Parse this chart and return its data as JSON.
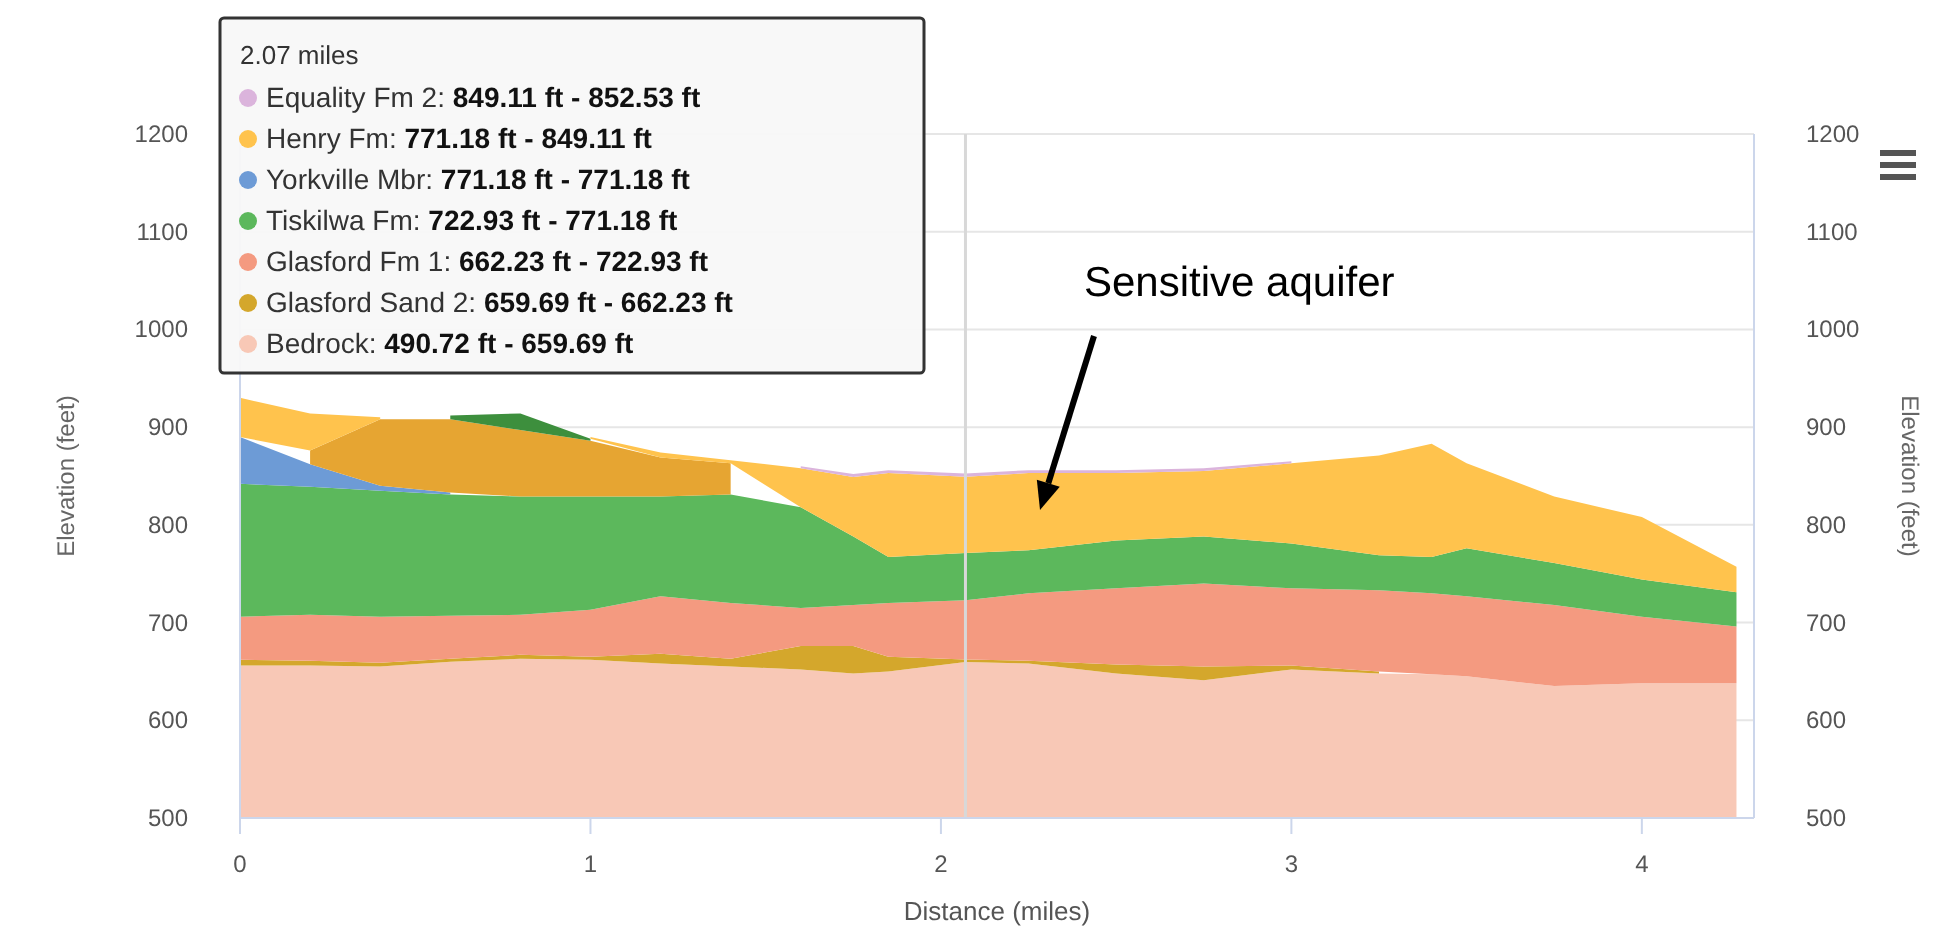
{
  "chart_data": {
    "type": "area",
    "xlabel": "Distance (miles)",
    "ylabel": "Elevation (feet)",
    "y2label": "Elevation (feet)",
    "legend_title": "2.07 miles",
    "x": [
      0,
      0.2,
      0.4,
      0.6,
      0.8,
      1.0,
      1.2,
      1.4,
      1.6,
      1.75,
      1.85,
      2.07,
      2.25,
      2.5,
      2.75,
      3.0,
      3.25,
      3.4,
      3.5,
      3.75,
      4.0,
      4.27
    ],
    "series": [
      {
        "name": "Equality Fm 2:",
        "color": "#dbb4dc",
        "values": [
          null,
          null,
          null,
          null,
          null,
          null,
          null,
          null,
          860,
          852,
          856,
          852.53,
          856,
          856,
          858,
          865,
          null,
          null,
          null,
          null,
          null,
          null
        ]
      },
      {
        "name": "Henry Fm:",
        "color": "#ffc34d",
        "values": [
          930,
          914,
          910,
          null,
          null,
          890,
          874,
          866,
          858,
          849,
          853,
          849.11,
          853,
          853,
          855,
          863,
          871,
          883,
          863,
          829,
          808,
          757
        ]
      },
      {
        "color": "#3d8f3d",
        "values": [
          null,
          null,
          null,
          912,
          914,
          888,
          null,
          null,
          null,
          null,
          null,
          null,
          null,
          null,
          null,
          null,
          null,
          null,
          null,
          null,
          null,
          null
        ]
      },
      {
        "color": "#e6a532",
        "values": [
          null,
          876,
          908,
          908,
          897,
          886,
          869,
          863,
          null,
          null,
          null,
          null,
          null,
          null,
          null,
          null,
          null,
          null,
          null,
          null,
          null,
          null
        ]
      },
      {
        "name": "Yorkville Mbr:",
        "color": "#6d9bd6",
        "values": [
          890,
          862,
          840,
          833,
          null,
          null,
          null,
          null,
          null,
          null,
          null,
          null,
          null,
          null,
          null,
          null,
          null,
          null,
          null,
          null,
          null,
          null
        ]
      },
      {
        "name": "Tiskilwa Fm:",
        "color": "#5cb85c",
        "values": [
          842,
          839,
          835,
          831,
          829,
          829,
          829,
          831,
          818,
          788,
          767,
          771.18,
          774,
          784,
          788,
          781,
          769,
          767,
          776,
          761,
          744,
          731
        ]
      },
      {
        "name": "Glasford Fm 1:",
        "color": "#f49a80",
        "values": [
          706,
          708,
          706,
          707,
          708,
          713,
          727,
          720,
          715,
          718,
          720,
          722.93,
          730,
          735,
          740,
          735,
          733,
          730,
          727,
          718,
          706,
          696
        ]
      },
      {
        "name": "Glasford Sand 2:",
        "color": "#d4a72c",
        "values": [
          662,
          661,
          659,
          663,
          667,
          665,
          668,
          663,
          676,
          676,
          665,
          662.23,
          661,
          657,
          655,
          656,
          650,
          null,
          null,
          null,
          null,
          null
        ]
      },
      {
        "name": "Bedrock:",
        "color": "#f8c8b6",
        "values": [
          656,
          656,
          655,
          660,
          663,
          662,
          658,
          655,
          652,
          648,
          650,
          659.69,
          658,
          648,
          641,
          652,
          648,
          647,
          645,
          635,
          638,
          638
        ]
      }
    ],
    "xlim": [
      0,
      4.32
    ],
    "xticks": [
      0,
      1,
      2,
      3,
      4
    ],
    "ylim": [
      500,
      1200
    ],
    "yticks": [
      500,
      600,
      700,
      800,
      900,
      1000,
      1100,
      1200
    ],
    "y2lim": [
      500,
      1200
    ],
    "y2ticks": [
      500,
      600,
      700,
      800,
      900,
      1000,
      1100,
      1200
    ],
    "grid": "y",
    "legend": "top left",
    "ref_lines": [
      {
        "axis": "x",
        "value": 2.07,
        "color": "#d8d8d8"
      }
    ],
    "annotations": [
      "849.11 ft - 852.53 ft",
      "771.18 ft - 849.11 ft",
      "771.18 ft - 771.18 ft",
      "722.93 ft - 771.18 ft",
      "662.23 ft - 722.93 ft",
      "659.69 ft - 662.23 ft",
      "490.72 ft - 659.69 ft",
      "Sensitive aquifer"
    ]
  }
}
